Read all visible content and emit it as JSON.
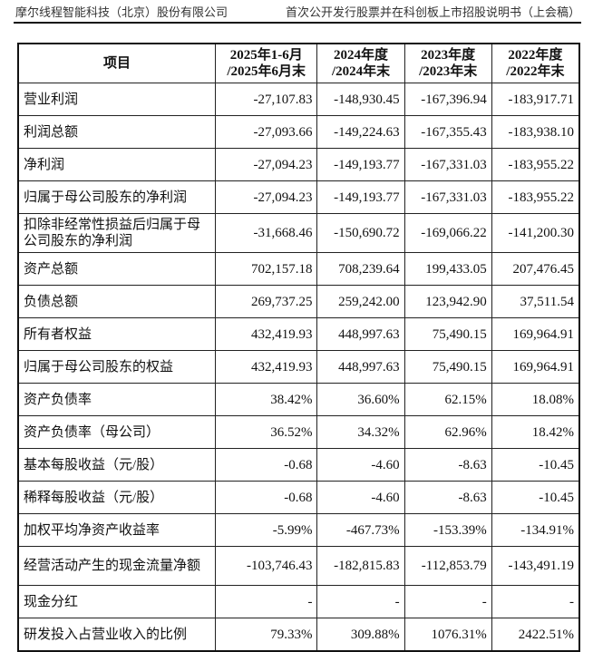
{
  "header": {
    "company": "摩尔线程智能科技（北京）股份有限公司",
    "document": "首次公开发行股票并在科创板上市招股说明书（上会稿）"
  },
  "table": {
    "columns": [
      "项目",
      "2025年1-6月 /2025年6月末",
      "2024年度 /2024年末",
      "2023年度 /2023年末",
      "2022年度 /2022年末"
    ],
    "rows": [
      {
        "label": "营业利润",
        "values": [
          "-27,107.83",
          "-148,930.45",
          "-167,396.94",
          "-183,917.71"
        ]
      },
      {
        "label": "利润总额",
        "values": [
          "-27,093.66",
          "-149,224.63",
          "-167,355.43",
          "-183,938.10"
        ]
      },
      {
        "label": "净利润",
        "values": [
          "-27,094.23",
          "-149,193.77",
          "-167,331.03",
          "-183,955.22"
        ]
      },
      {
        "label": "归属于母公司股东的净利润",
        "values": [
          "-27,094.23",
          "-149,193.77",
          "-167,331.03",
          "-183,955.22"
        ]
      },
      {
        "label": "扣除非经常性损益后归属于母公司股东的净利润",
        "values": [
          "-31,668.46",
          "-150,690.72",
          "-169,066.22",
          "-141,200.30"
        ]
      },
      {
        "label": "资产总额",
        "values": [
          "702,157.18",
          "708,239.64",
          "199,433.05",
          "207,476.45"
        ]
      },
      {
        "label": "负债总额",
        "values": [
          "269,737.25",
          "259,242.00",
          "123,942.90",
          "37,511.54"
        ]
      },
      {
        "label": "所有者权益",
        "values": [
          "432,419.93",
          "448,997.63",
          "75,490.15",
          "169,964.91"
        ]
      },
      {
        "label": "归属于母公司股东的权益",
        "values": [
          "432,419.93",
          "448,997.63",
          "75,490.15",
          "169,964.91"
        ]
      },
      {
        "label": "资产负债率",
        "values": [
          "38.42%",
          "36.60%",
          "62.15%",
          "18.08%"
        ]
      },
      {
        "label": "资产负债率（母公司）",
        "values": [
          "36.52%",
          "34.32%",
          "62.96%",
          "18.42%"
        ]
      },
      {
        "label": "基本每股收益（元/股）",
        "values": [
          "-0.68",
          "-4.60",
          "-8.63",
          "-10.45"
        ]
      },
      {
        "label": "稀释每股收益（元/股）",
        "values": [
          "-0.68",
          "-4.60",
          "-8.63",
          "-10.45"
        ]
      },
      {
        "label": "加权平均净资产收益率",
        "values": [
          "-5.99%",
          "-467.73%",
          "-153.39%",
          "-134.91%"
        ]
      },
      {
        "label": "经营活动产生的现金流量净额",
        "values": [
          "-103,746.43",
          "-182,815.83",
          "-112,853.79",
          "-143,491.19"
        ]
      },
      {
        "label": "现金分红",
        "values": [
          "-",
          "-",
          "-",
          "-"
        ]
      },
      {
        "label": "研发投入占营业收入的比例",
        "values": [
          "79.33%",
          "309.88%",
          "1076.31%",
          "2422.51%"
        ]
      }
    ]
  }
}
